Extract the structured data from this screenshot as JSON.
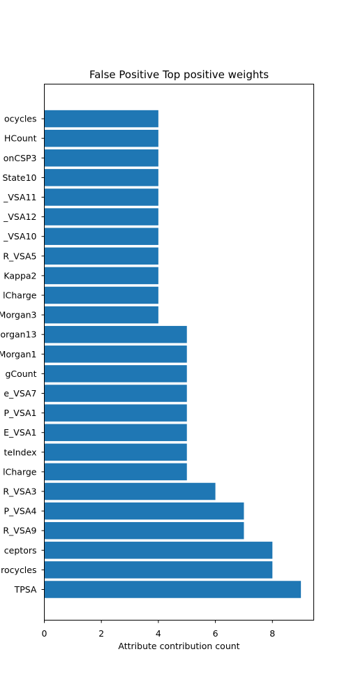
{
  "chart_data": {
    "type": "bar",
    "orientation": "horizontal",
    "title": "False Positive Top positive weights",
    "xlabel": "Attribute contribution count",
    "ylabel": "",
    "xlim": [
      0,
      9.45
    ],
    "xticks": [
      0,
      2,
      4,
      6,
      8
    ],
    "grid": false,
    "bar_color": "#1f77b4",
    "categories": [
      "TPSA",
      "rocycles",
      "ceptors",
      "R_VSA9",
      "P_VSA4",
      "R_VSA3",
      "lCharge",
      "teIndex",
      "E_VSA1",
      "P_VSA1",
      "e_VSA7",
      "gCount",
      "Morgan1",
      "organ13",
      "Morgan3",
      "lCharge",
      "Kappa2",
      "R_VSA5",
      "_VSA10",
      "_VSA12",
      "_VSA11",
      "State10",
      "onCSP3",
      "HCount",
      "ocycles"
    ],
    "values": [
      9,
      8,
      8,
      7,
      7,
      6,
      5,
      5,
      5,
      5,
      5,
      5,
      5,
      5,
      4,
      4,
      4,
      4,
      4,
      4,
      4,
      4,
      4,
      4,
      4
    ]
  }
}
